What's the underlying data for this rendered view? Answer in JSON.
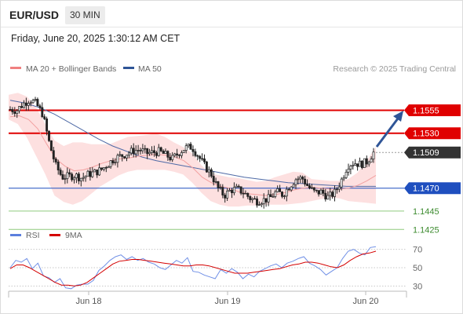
{
  "header": {
    "symbol": "EUR/USD",
    "timeframe": "30 MIN",
    "datetime": "Friday, June 20, 2025 1:30:12 AM CET"
  },
  "legend": {
    "ma20_label": "MA 20 + Bollinger Bands",
    "ma50_label": "MA 50",
    "copyright": "Research © 2025 Trading Central",
    "ma20_color": "#f08080",
    "ma50_color": "#2f5597"
  },
  "rsi_legend": {
    "rsi_label": "RSI",
    "ma_label": "9MA",
    "rsi_color": "#5b7fde",
    "ma_color": "#d40000"
  },
  "chart_data": {
    "type": "candlestick",
    "y_range": [
      1.1405,
      1.16
    ],
    "x_tick_labels": [
      "Jun 18",
      "Jun 19",
      "Jun 20"
    ],
    "levels": [
      {
        "value": 1.1555,
        "label": "1.1555",
        "style": "resistance",
        "color": "#e00000"
      },
      {
        "value": 1.153,
        "label": "1.1530",
        "style": "resistance",
        "color": "#e00000"
      },
      {
        "value": 1.1509,
        "label": "1.1509",
        "style": "last",
        "color": "#333333"
      },
      {
        "value": 1.147,
        "label": "1.1470",
        "style": "pivot",
        "color": "#1f4fbf"
      },
      {
        "value": 1.1445,
        "label": "1.1445",
        "style": "support",
        "color": "#5aa64b"
      },
      {
        "value": 1.1425,
        "label": "1.1425",
        "style": "support",
        "color": "#5aa64b"
      }
    ],
    "forecast": "up",
    "price_path": [
      1.1556,
      1.1555,
      1.1562,
      1.1567,
      1.1562,
      1.1551,
      1.152,
      1.1495,
      1.1482,
      1.1483,
      1.1484,
      1.1481,
      1.1485,
      1.1487,
      1.149,
      1.1496,
      1.1502,
      1.1505,
      1.1508,
      1.1511,
      1.1512,
      1.1508,
      1.1509,
      1.151,
      1.1506,
      1.1502,
      1.1509,
      1.1514,
      1.1515,
      1.1505,
      1.1494,
      1.1485,
      1.147,
      1.1462,
      1.1468,
      1.1469,
      1.1465,
      1.1459,
      1.1456,
      1.1457,
      1.1459,
      1.1466,
      1.1463,
      1.1472,
      1.148,
      1.1481,
      1.1471,
      1.1465,
      1.1466,
      1.146,
      1.1465,
      1.1478,
      1.1495,
      1.1498,
      1.1496,
      1.1499,
      1.1509
    ],
    "ma20_path": [
      1.1548,
      1.1549,
      1.1545,
      1.1535,
      1.1518,
      1.1502,
      1.1494,
      1.1489,
      1.149,
      1.1493,
      1.1497,
      1.15,
      1.1502,
      1.1503,
      1.1505,
      1.1506,
      1.1507,
      1.1506,
      1.1504,
      1.15,
      1.1492,
      1.1482,
      1.1476,
      1.1472,
      1.147,
      1.1466,
      1.1464,
      1.1463,
      1.1462,
      1.1463,
      1.1465,
      1.1468,
      1.147,
      1.1471,
      1.147,
      1.1469,
      1.1469,
      1.147,
      1.1473,
      1.1478,
      1.1484
    ],
    "ma50_path": [
      1.1566,
      1.1563,
      1.1558,
      1.1551,
      1.1542,
      1.1533,
      1.1524,
      1.1516,
      1.151,
      1.1504,
      1.15,
      1.1497,
      1.1494,
      1.1491,
      1.1488,
      1.1485,
      1.1482,
      1.148,
      1.1478,
      1.1476,
      1.1475,
      1.1474,
      1.1473,
      1.1472,
      1.1472,
      1.1472
    ],
    "band_upper": [
      1.1572,
      1.1574,
      1.157,
      1.1558,
      1.154,
      1.1522,
      1.1516,
      1.152,
      1.152,
      1.1518,
      1.1518,
      1.1518,
      1.1522,
      1.1526,
      1.1527,
      1.1528,
      1.153,
      1.1526,
      1.152,
      1.1515,
      1.1508,
      1.1495,
      1.1486,
      1.1484,
      1.1482,
      1.1481,
      1.1479,
      1.1477,
      1.1478,
      1.1482,
      1.1485,
      1.1488,
      1.1487,
      1.148,
      1.1479,
      1.1478,
      1.1478,
      1.148,
      1.1487,
      1.15,
      1.1515
    ],
    "band_lower": [
      1.1545,
      1.154,
      1.1525,
      1.1505,
      1.1485,
      1.1462,
      1.1455,
      1.1452,
      1.1456,
      1.1464,
      1.1472,
      1.1478,
      1.1484,
      1.1488,
      1.149,
      1.149,
      1.149,
      1.149,
      1.1488,
      1.1485,
      1.1476,
      1.1465,
      1.1456,
      1.1452,
      1.145,
      1.145,
      1.1451,
      1.1451,
      1.1452,
      1.1452,
      1.1452,
      1.1453,
      1.1454,
      1.1456,
      1.1458,
      1.146,
      1.1459,
      1.1456,
      1.1455,
      1.1454,
      1.1453
    ],
    "rsi": {
      "y_ticks": [
        70,
        50,
        30
      ],
      "y_range": [
        20,
        80
      ],
      "rsi_path": [
        50,
        58,
        56,
        60,
        49,
        55,
        41,
        39,
        34,
        38,
        28,
        27,
        31,
        32,
        32,
        36,
        47,
        52,
        58,
        62,
        64,
        59,
        62,
        58,
        60,
        56,
        54,
        50,
        48,
        53,
        58,
        55,
        61,
        46,
        45,
        42,
        40,
        38,
        48,
        44,
        49,
        45,
        38,
        43,
        40,
        46,
        49,
        52,
        54,
        50,
        55,
        57,
        60,
        62,
        55,
        52,
        48,
        42,
        46,
        50,
        60,
        68,
        70,
        66,
        64,
        72,
        73
      ],
      "ma_path": [
        49,
        53,
        53,
        50,
        46,
        42,
        38,
        34,
        31,
        31,
        30,
        31,
        34,
        39,
        44,
        49,
        54,
        57,
        58,
        59,
        59,
        58,
        57,
        56,
        55,
        54,
        53,
        52,
        52,
        53,
        53,
        52,
        50,
        48,
        46,
        44,
        44,
        44,
        45,
        46,
        47,
        48,
        49,
        51,
        53,
        54,
        56,
        56,
        55,
        53,
        51,
        50,
        53,
        58,
        62,
        65,
        66,
        68
      ]
    }
  }
}
